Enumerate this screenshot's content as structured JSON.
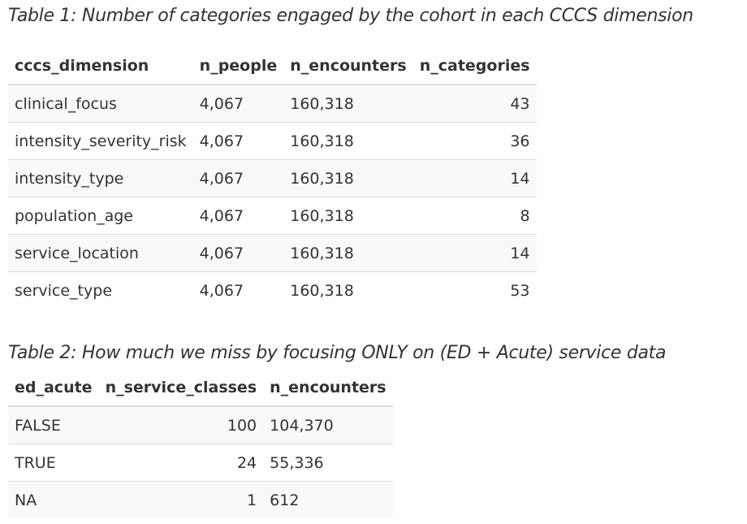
{
  "table1": {
    "caption": "Table 1: Number of categories engaged by the cohort in each CCCS dimension",
    "columns": [
      "cccs_dimension",
      "n_people",
      "n_encounters",
      "n_categories"
    ],
    "rows": [
      [
        "clinical_focus",
        "4,067",
        "160,318",
        "43"
      ],
      [
        "intensity_severity_risk",
        "4,067",
        "160,318",
        "36"
      ],
      [
        "intensity_type",
        "4,067",
        "160,318",
        "14"
      ],
      [
        "population_age",
        "4,067",
        "160,318",
        "8"
      ],
      [
        "service_location",
        "4,067",
        "160,318",
        "14"
      ],
      [
        "service_type",
        "4,067",
        "160,318",
        "53"
      ]
    ]
  },
  "table2": {
    "caption": "Table 2: How much we miss by focusing ONLY on (ED + Acute) service data",
    "columns": [
      "ed_acute",
      "n_service_classes",
      "n_encounters"
    ],
    "rows": [
      [
        "FALSE",
        "100",
        "104,370"
      ],
      [
        "TRUE",
        "24",
        "55,336"
      ],
      [
        "NA",
        "1",
        "612"
      ]
    ]
  }
}
